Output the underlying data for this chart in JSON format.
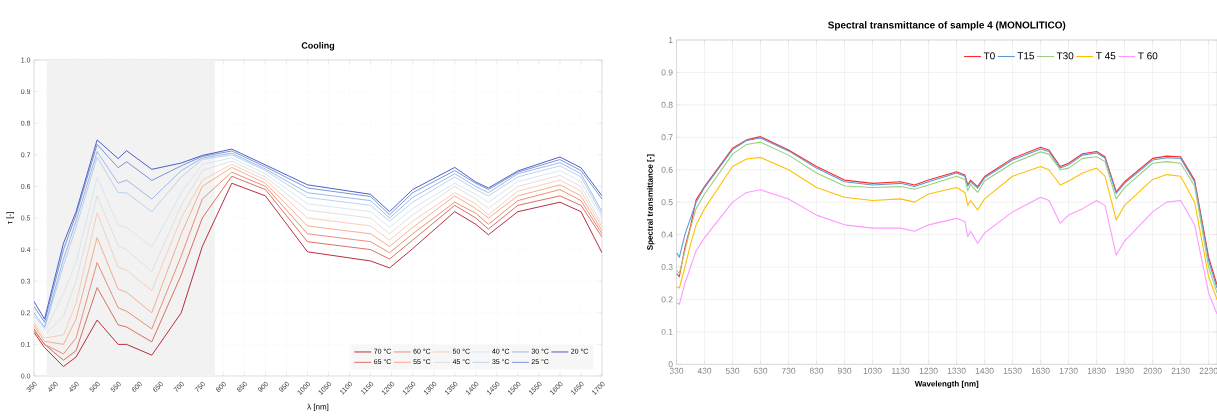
{
  "chart_data": [
    {
      "type": "line",
      "title": "Cooling",
      "xlabel": "λ [nm]",
      "ylabel": "τ [-]",
      "x": [
        350,
        375,
        420,
        450,
        500,
        550,
        570,
        630,
        700,
        750,
        820,
        900,
        1000,
        1150,
        1195,
        1250,
        1350,
        1400,
        1430,
        1500,
        1600,
        1650,
        1700
      ],
      "series": [
        {
          "name": "70 °C",
          "color": "#b2182b",
          "values": [
            0.138,
            0.09,
            0.03,
            0.06,
            0.177,
            0.1,
            0.1,
            0.066,
            0.2,
            0.41,
            0.61,
            0.57,
            0.393,
            0.364,
            0.342,
            0.403,
            0.52,
            0.48,
            0.447,
            0.52,
            0.55,
            0.52,
            0.39
          ]
        },
        {
          "name": "65 °C",
          "color": "#d6604d",
          "values": [
            0.145,
            0.1,
            0.05,
            0.08,
            0.28,
            0.162,
            0.155,
            0.108,
            0.32,
            0.5,
            0.632,
            0.59,
            0.425,
            0.4,
            0.37,
            0.43,
            0.54,
            0.5,
            0.465,
            0.54,
            0.57,
            0.54,
            0.44
          ]
        },
        {
          "name": "60 °C",
          "color": "#e8836b",
          "values": [
            0.15,
            0.1,
            0.07,
            0.12,
            0.359,
            0.216,
            0.205,
            0.149,
            0.38,
            0.56,
            0.645,
            0.6,
            0.45,
            0.425,
            0.39,
            0.45,
            0.55,
            0.515,
            0.48,
            0.555,
            0.59,
            0.555,
            0.45
          ]
        },
        {
          "name": "55 °C",
          "color": "#f4a582",
          "values": [
            0.16,
            0.11,
            0.1,
            0.18,
            0.438,
            0.275,
            0.265,
            0.2,
            0.45,
            0.6,
            0.66,
            0.61,
            0.475,
            0.45,
            0.41,
            0.47,
            0.57,
            0.53,
            0.5,
            0.57,
            0.605,
            0.57,
            0.46
          ]
        },
        {
          "name": "50 °C",
          "color": "#f7c9b4",
          "values": [
            0.165,
            0.12,
            0.13,
            0.23,
            0.516,
            0.344,
            0.335,
            0.27,
            0.5,
            0.62,
            0.67,
            0.62,
            0.5,
            0.475,
            0.43,
            0.49,
            0.58,
            0.545,
            0.51,
            0.585,
            0.62,
            0.585,
            0.47
          ]
        },
        {
          "name": "45 °C",
          "color": "#dcdcdc",
          "values": [
            0.17,
            0.13,
            0.19,
            0.3,
            0.57,
            0.413,
            0.4,
            0.33,
            0.54,
            0.65,
            0.68,
            0.63,
            0.525,
            0.5,
            0.45,
            0.51,
            0.6,
            0.56,
            0.53,
            0.6,
            0.635,
            0.6,
            0.48
          ]
        },
        {
          "name": "40 °C",
          "color": "#d4e4f2",
          "values": [
            0.18,
            0.14,
            0.26,
            0.36,
            0.629,
            0.477,
            0.47,
            0.408,
            0.58,
            0.67,
            0.69,
            0.64,
            0.545,
            0.52,
            0.47,
            0.53,
            0.61,
            0.575,
            0.55,
            0.615,
            0.65,
            0.615,
            0.5
          ]
        },
        {
          "name": "35 °C",
          "color": "#b5cdec",
          "values": [
            0.19,
            0.15,
            0.35,
            0.47,
            0.693,
            0.58,
            0.58,
            0.52,
            0.63,
            0.685,
            0.7,
            0.65,
            0.565,
            0.54,
            0.49,
            0.55,
            0.63,
            0.59,
            0.57,
            0.63,
            0.665,
            0.63,
            0.51
          ]
        },
        {
          "name": "30 °C",
          "color": "#92b2e6",
          "values": [
            0.2,
            0.155,
            0.37,
            0.49,
            0.71,
            0.61,
            0.62,
            0.56,
            0.65,
            0.69,
            0.705,
            0.655,
            0.58,
            0.555,
            0.5,
            0.565,
            0.64,
            0.6,
            0.58,
            0.64,
            0.675,
            0.64,
            0.52
          ]
        },
        {
          "name": "25 °C",
          "color": "#6a8ad8",
          "values": [
            0.22,
            0.17,
            0.4,
            0.51,
            0.733,
            0.659,
            0.678,
            0.619,
            0.665,
            0.695,
            0.712,
            0.662,
            0.595,
            0.568,
            0.51,
            0.58,
            0.65,
            0.61,
            0.59,
            0.645,
            0.685,
            0.65,
            0.56
          ]
        },
        {
          "name": "20 °C",
          "color": "#3b4cc0",
          "values": [
            0.236,
            0.18,
            0.42,
            0.52,
            0.747,
            0.688,
            0.713,
            0.654,
            0.674,
            0.698,
            0.718,
            0.668,
            0.605,
            0.575,
            0.52,
            0.59,
            0.66,
            0.614,
            0.595,
            0.649,
            0.693,
            0.659,
            0.57
          ]
        }
      ],
      "xlim": [
        350,
        1700
      ],
      "ylim": [
        0,
        1
      ],
      "xticks": [
        350,
        400,
        450,
        500,
        550,
        600,
        650,
        700,
        750,
        800,
        850,
        900,
        950,
        1000,
        1050,
        1100,
        1150,
        1200,
        1250,
        1300,
        1350,
        1400,
        1450,
        1500,
        1550,
        1600,
        1650,
        1700
      ],
      "yticks": [
        {
          "value": 0,
          "label": "0.0"
        },
        {
          "value": 0.1,
          "label": "0.1"
        },
        {
          "value": 0.2,
          "label": "0.2"
        },
        {
          "value": 0.3,
          "label": "0.3"
        },
        {
          "value": 0.4,
          "label": "0.4"
        },
        {
          "value": 0.5,
          "label": "0.5"
        },
        {
          "value": 0.6,
          "label": "0.6"
        },
        {
          "value": 0.7,
          "label": "0.7"
        },
        {
          "value": 0.8,
          "label": "0.8"
        },
        {
          "value": 0.9,
          "label": "0.9"
        },
        {
          "value": 1,
          "label": "1.0"
        }
      ],
      "bands": [
        {
          "axis": "x",
          "from": 380,
          "to": 780,
          "color": "#f1f2f1"
        }
      ],
      "grid": true,
      "legend": "bottom right"
    },
    {
      "type": "line",
      "title": "Spectral transmittance of sample 4 (MONOLITICO)",
      "xlabel": "Wavelength [nm]",
      "ylabel": "Spectral transmittance [-]",
      "x": [
        330,
        340,
        360,
        380,
        400,
        430,
        530,
        580,
        630,
        730,
        830,
        930,
        1030,
        1130,
        1180,
        1230,
        1330,
        1360,
        1370,
        1380,
        1405,
        1430,
        1530,
        1630,
        1660,
        1700,
        1730,
        1780,
        1830,
        1860,
        1900,
        1930,
        2030,
        2080,
        2130,
        2180,
        2230,
        2260
      ],
      "series": [
        {
          "name": "T0",
          "color": "#ff2a2a",
          "values": [
            0.28,
            0.27,
            0.36,
            0.425,
            0.507,
            0.548,
            0.666,
            0.692,
            0.702,
            0.661,
            0.61,
            0.568,
            0.558,
            0.563,
            0.553,
            0.568,
            0.594,
            0.584,
            0.553,
            0.568,
            0.548,
            0.579,
            0.635,
            0.669,
            0.661,
            0.61,
            0.62,
            0.649,
            0.656,
            0.64,
            0.532,
            0.563,
            0.635,
            0.642,
            0.64,
            0.568,
            0.33,
            0.245
          ]
        },
        {
          "name": "T15",
          "color": "#5b9bd5",
          "values": [
            0.345,
            0.33,
            0.4,
            0.45,
            0.5,
            0.545,
            0.662,
            0.69,
            0.698,
            0.658,
            0.605,
            0.563,
            0.553,
            0.558,
            0.548,
            0.563,
            0.59,
            0.58,
            0.55,
            0.563,
            0.543,
            0.575,
            0.63,
            0.664,
            0.656,
            0.605,
            0.615,
            0.645,
            0.652,
            0.636,
            0.527,
            0.558,
            0.63,
            0.637,
            0.635,
            0.562,
            0.32,
            0.235
          ]
        },
        {
          "name": "T30",
          "color": "#9bcf7f",
          "values": [
            0.29,
            0.28,
            0.35,
            0.42,
            0.48,
            0.525,
            0.648,
            0.678,
            0.685,
            0.645,
            0.59,
            0.55,
            0.545,
            0.548,
            0.54,
            0.553,
            0.58,
            0.57,
            0.535,
            0.555,
            0.53,
            0.565,
            0.62,
            0.655,
            0.648,
            0.6,
            0.605,
            0.635,
            0.64,
            0.625,
            0.51,
            0.545,
            0.62,
            0.625,
            0.62,
            0.55,
            0.3,
            0.22
          ]
        },
        {
          "name": "T 45",
          "color": "#ffc000",
          "values": [
            0.24,
            0.235,
            0.3,
            0.37,
            0.43,
            0.48,
            0.61,
            0.633,
            0.638,
            0.6,
            0.545,
            0.515,
            0.505,
            0.51,
            0.5,
            0.525,
            0.545,
            0.53,
            0.49,
            0.505,
            0.476,
            0.51,
            0.58,
            0.61,
            0.6,
            0.553,
            0.565,
            0.59,
            0.605,
            0.58,
            0.445,
            0.49,
            0.57,
            0.585,
            0.58,
            0.5,
            0.27,
            0.2
          ]
        },
        {
          "name": "T 60",
          "color": "#ff99ff",
          "values": [
            0.19,
            0.185,
            0.25,
            0.3,
            0.35,
            0.39,
            0.5,
            0.53,
            0.538,
            0.51,
            0.46,
            0.43,
            0.42,
            0.42,
            0.41,
            0.43,
            0.45,
            0.44,
            0.394,
            0.41,
            0.373,
            0.405,
            0.47,
            0.515,
            0.505,
            0.435,
            0.46,
            0.48,
            0.505,
            0.49,
            0.337,
            0.38,
            0.47,
            0.5,
            0.505,
            0.43,
            0.22,
            0.155
          ]
        }
      ],
      "xlim": [
        330,
        2260
      ],
      "ylim": [
        0,
        1
      ],
      "xticks": [
        330,
        430,
        530,
        630,
        730,
        830,
        930,
        1030,
        1130,
        1230,
        1330,
        1430,
        1530,
        1630,
        1730,
        1830,
        1930,
        2030,
        2130,
        2230
      ],
      "yticks": [
        0,
        0.1,
        0.2,
        0.3,
        0.4,
        0.5,
        0.6,
        0.7,
        0.8,
        0.9,
        1
      ],
      "grid": true,
      "legend": "top right"
    }
  ]
}
